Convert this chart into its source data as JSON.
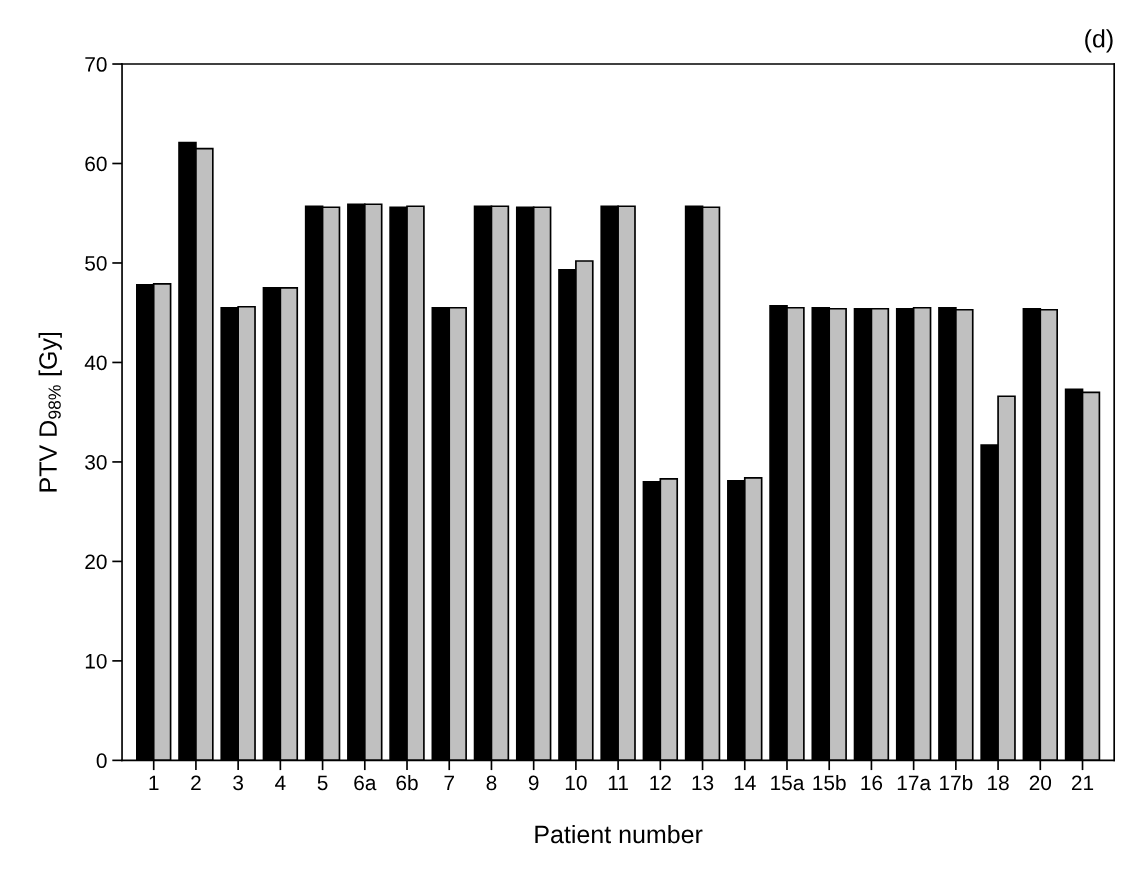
{
  "chart_data": {
    "type": "bar",
    "title": "(d)",
    "xlabel": "Patient number",
    "ylabel": "PTV D$_{98%}$ [Gy]",
    "categories": [
      "1",
      "2",
      "3",
      "4",
      "5",
      "6a",
      "6b",
      "7",
      "8",
      "9",
      "10",
      "11",
      "12",
      "13",
      "14",
      "15a",
      "15b",
      "16",
      "17a",
      "17b",
      "18",
      "20",
      "21"
    ],
    "series": [
      {
        "color": "#000000",
        "values": [
          47.8,
          62.1,
          45.5,
          47.5,
          55.7,
          55.9,
          55.6,
          45.5,
          55.7,
          55.6,
          49.3,
          55.7,
          28.0,
          55.7,
          28.1,
          45.7,
          45.5,
          45.4,
          45.4,
          45.5,
          31.7,
          45.4,
          37.3
        ]
      },
      {
        "color": "#c0c0c0",
        "values": [
          47.9,
          61.5,
          45.6,
          47.5,
          55.6,
          55.9,
          55.7,
          45.5,
          55.7,
          55.6,
          50.2,
          55.7,
          28.3,
          55.6,
          28.4,
          45.5,
          45.4,
          45.4,
          45.5,
          45.3,
          36.6,
          45.3,
          37.0
        ]
      }
    ],
    "ylim": [
      0,
      70
    ],
    "yticks": [
      0,
      10,
      20,
      30,
      40,
      50,
      60,
      70
    ],
    "grid": false
  }
}
